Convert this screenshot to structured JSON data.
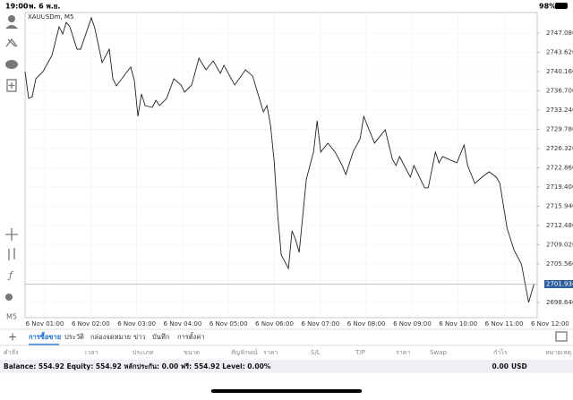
{
  "status_bar": {
    "time": "19:00",
    "date": "พ. 6 พ.ย.",
    "battery": "98%"
  },
  "chart_data": {
    "type": "line",
    "title": "XAUUSDm, M5",
    "timeframe": "M5",
    "color": "#222222",
    "grid": true,
    "x": [
      0.571,
      0.649,
      0.727,
      0.805,
      0.961,
      1.156,
      1.312,
      1.39,
      1.468,
      1.546,
      1.702,
      1.78,
      2.014,
      2.092,
      2.248,
      2.404,
      2.482,
      2.56,
      2.794,
      2.872,
      2.95,
      3.028,
      3.106,
      3.184,
      3.341,
      3.419,
      3.497,
      3.653,
      3.809,
      3.965,
      4.043,
      4.199,
      4.355,
      4.511,
      4.667,
      4.823,
      4.901,
      5.135,
      5.369,
      5.525,
      5.759,
      5.837,
      5.915,
      5.993,
      6.071,
      6.149,
      6.305,
      6.383,
      6.461,
      6.539,
      6.695,
      6.851,
      6.929,
      7.007,
      7.163,
      7.32,
      7.476,
      7.554,
      7.71,
      7.866,
      7.944,
      8.1,
      8.178,
      8.412,
      8.568,
      8.646,
      8.724,
      8.958,
      9.036,
      9.27,
      9.348,
      9.504,
      9.582,
      9.66,
      9.972,
      10.128,
      10.206,
      10.362,
      10.518,
      10.674,
      10.83,
      10.908,
      11.064,
      11.22,
      11.377,
      11.533,
      11.65
    ],
    "values": [
      2740.16,
      2735.33,
      2735.65,
      2738.87,
      2740.16,
      2743.06,
      2748.21,
      2746.92,
      2749.01,
      2748.21,
      2744.18,
      2744.18,
      2749.82,
      2747.88,
      2741.77,
      2744.18,
      2738.87,
      2737.59,
      2740.16,
      2740.96,
      2738.55,
      2732.11,
      2736.14,
      2734.04,
      2733.72,
      2735.01,
      2734.04,
      2735.33,
      2738.87,
      2737.75,
      2736.46,
      2737.75,
      2742.57,
      2740.48,
      2742.09,
      2739.84,
      2741.29,
      2737.75,
      2740.48,
      2739.36,
      2732.92,
      2734.04,
      2730.5,
      2724.07,
      2714.41,
      2707.17,
      2704.76,
      2711.51,
      2709.91,
      2707.65,
      2720.85,
      2725.68,
      2731.31,
      2725.68,
      2727.29,
      2725.68,
      2723.26,
      2721.65,
      2725.68,
      2728.09,
      2732.11,
      2728.89,
      2727.29,
      2729.7,
      2724.39,
      2723.26,
      2724.87,
      2721.17,
      2723.26,
      2719.24,
      2719.24,
      2725.68,
      2723.75,
      2724.87,
      2723.75,
      2726.96,
      2723.26,
      2720.04,
      2721.17,
      2722.14,
      2721.17,
      2720.04,
      2712.0,
      2707.97,
      2705.56,
      2698.64,
      2701.93
    ],
    "current_price": 2701.934,
    "xlim": [
      0.571,
      11.72
    ],
    "ylim": [
      2695.9,
      2750.78
    ],
    "xticks": [
      {
        "value": 1,
        "label": "6 Nov 01:00"
      },
      {
        "value": 2,
        "label": "6 Nov 02:00"
      },
      {
        "value": 3,
        "label": "6 Nov 03:00"
      },
      {
        "value": 4,
        "label": "6 Nov 04:00"
      },
      {
        "value": 5,
        "label": "6 Nov 05:00"
      },
      {
        "value": 6,
        "label": "6 Nov 06:00"
      },
      {
        "value": 7,
        "label": "6 Nov 07:00"
      },
      {
        "value": 8,
        "label": "6 Nov 08:00"
      },
      {
        "value": 9,
        "label": "6 Nov 09:00"
      },
      {
        "value": 10,
        "label": "6 Nov 10:00"
      },
      {
        "value": 11,
        "label": "6 Nov 11:00"
      },
      {
        "value": 12,
        "label": "6 Nov 12:00"
      }
    ],
    "yticks": [
      {
        "value": 2747.08,
        "label": "2747.080"
      },
      {
        "value": 2743.62,
        "label": "2743.620"
      },
      {
        "value": 2740.16,
        "label": "2740.160"
      },
      {
        "value": 2736.7,
        "label": "2736.700"
      },
      {
        "value": 2733.24,
        "label": "2733.240"
      },
      {
        "value": 2729.78,
        "label": "2729.780"
      },
      {
        "value": 2726.32,
        "label": "2726.320"
      },
      {
        "value": 2722.86,
        "label": "2722.860"
      },
      {
        "value": 2719.4,
        "label": "2719.400"
      },
      {
        "value": 2715.94,
        "label": "2715.940"
      },
      {
        "value": 2712.48,
        "label": "2712.480"
      },
      {
        "value": 2709.02,
        "label": "2709.020"
      },
      {
        "value": 2705.56,
        "label": "2705.560"
      },
      {
        "value": 2698.64,
        "label": "2698.640"
      }
    ]
  },
  "tabs": [
    "การซื้อขาย",
    "ประวัติ",
    "กล่องจดหมาย",
    "ข่าว",
    "บันทึก",
    "การตั้งค่า"
  ],
  "active_tab": 0,
  "columns": [
    "คำสั่ง",
    "เวลา",
    "ประเภท",
    "ขนาด",
    "สัญลักษณ์",
    "ราคา",
    "S/L",
    "T/P",
    "ราคา",
    "Swap",
    "กำไร",
    "หมายเหตุ"
  ],
  "account": {
    "summary": "Balance: 554.92 Equity: 554.92 หลักประกัน: 0.00 ฟรี: 554.92 Level: 0.00%",
    "profit": "0.00",
    "currency": "USD"
  }
}
